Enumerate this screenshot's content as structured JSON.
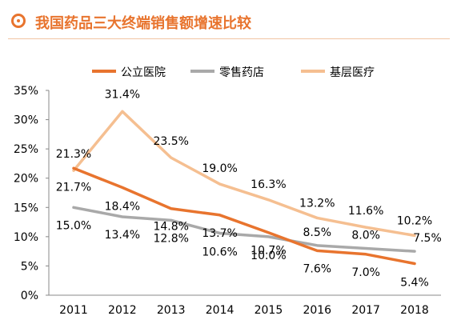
{
  "header": {
    "title": "我国药品三大终端销售额增速比较",
    "accent_color": "#e8742e",
    "icon": "target-circle-icon"
  },
  "chart_data": {
    "type": "line",
    "title": "",
    "xlabel": "",
    "ylabel": "",
    "categories": [
      "2011",
      "2012",
      "2013",
      "2014",
      "2015",
      "2016",
      "2017",
      "2018"
    ],
    "ylim": [
      0,
      35
    ],
    "yticks": [
      "0%",
      "5%",
      "10%",
      "15%",
      "20%",
      "25%",
      "30%",
      "35%"
    ],
    "grid": false,
    "legend_position": "top",
    "series": [
      {
        "name": "公立医院",
        "color": "#e8742e",
        "values": [
          21.7,
          18.4,
          14.8,
          13.7,
          10.7,
          7.6,
          7.0,
          5.4
        ],
        "labels": [
          "21.7%",
          "18.4%",
          "14.8%",
          "13.7%",
          "10.7%",
          "7.6%",
          "7.0%",
          "5.4%"
        ]
      },
      {
        "name": "零售药店",
        "color": "#a9a9a9",
        "values": [
          15.0,
          13.4,
          12.8,
          10.6,
          10.0,
          8.5,
          8.0,
          7.5
        ],
        "labels": [
          "15.0%",
          "13.4%",
          "12.8%",
          "10.6%",
          "10.0%",
          "8.5%",
          "8.0%",
          "7.5%"
        ]
      },
      {
        "name": "基层医疗",
        "color": "#f5bf91",
        "values": [
          21.3,
          31.4,
          23.5,
          19.0,
          16.3,
          13.2,
          11.6,
          10.2
        ],
        "labels": [
          "21.3%",
          "31.4%",
          "23.5%",
          "19.0%",
          "16.3%",
          "13.2%",
          "11.6%",
          "10.2%"
        ]
      }
    ]
  }
}
